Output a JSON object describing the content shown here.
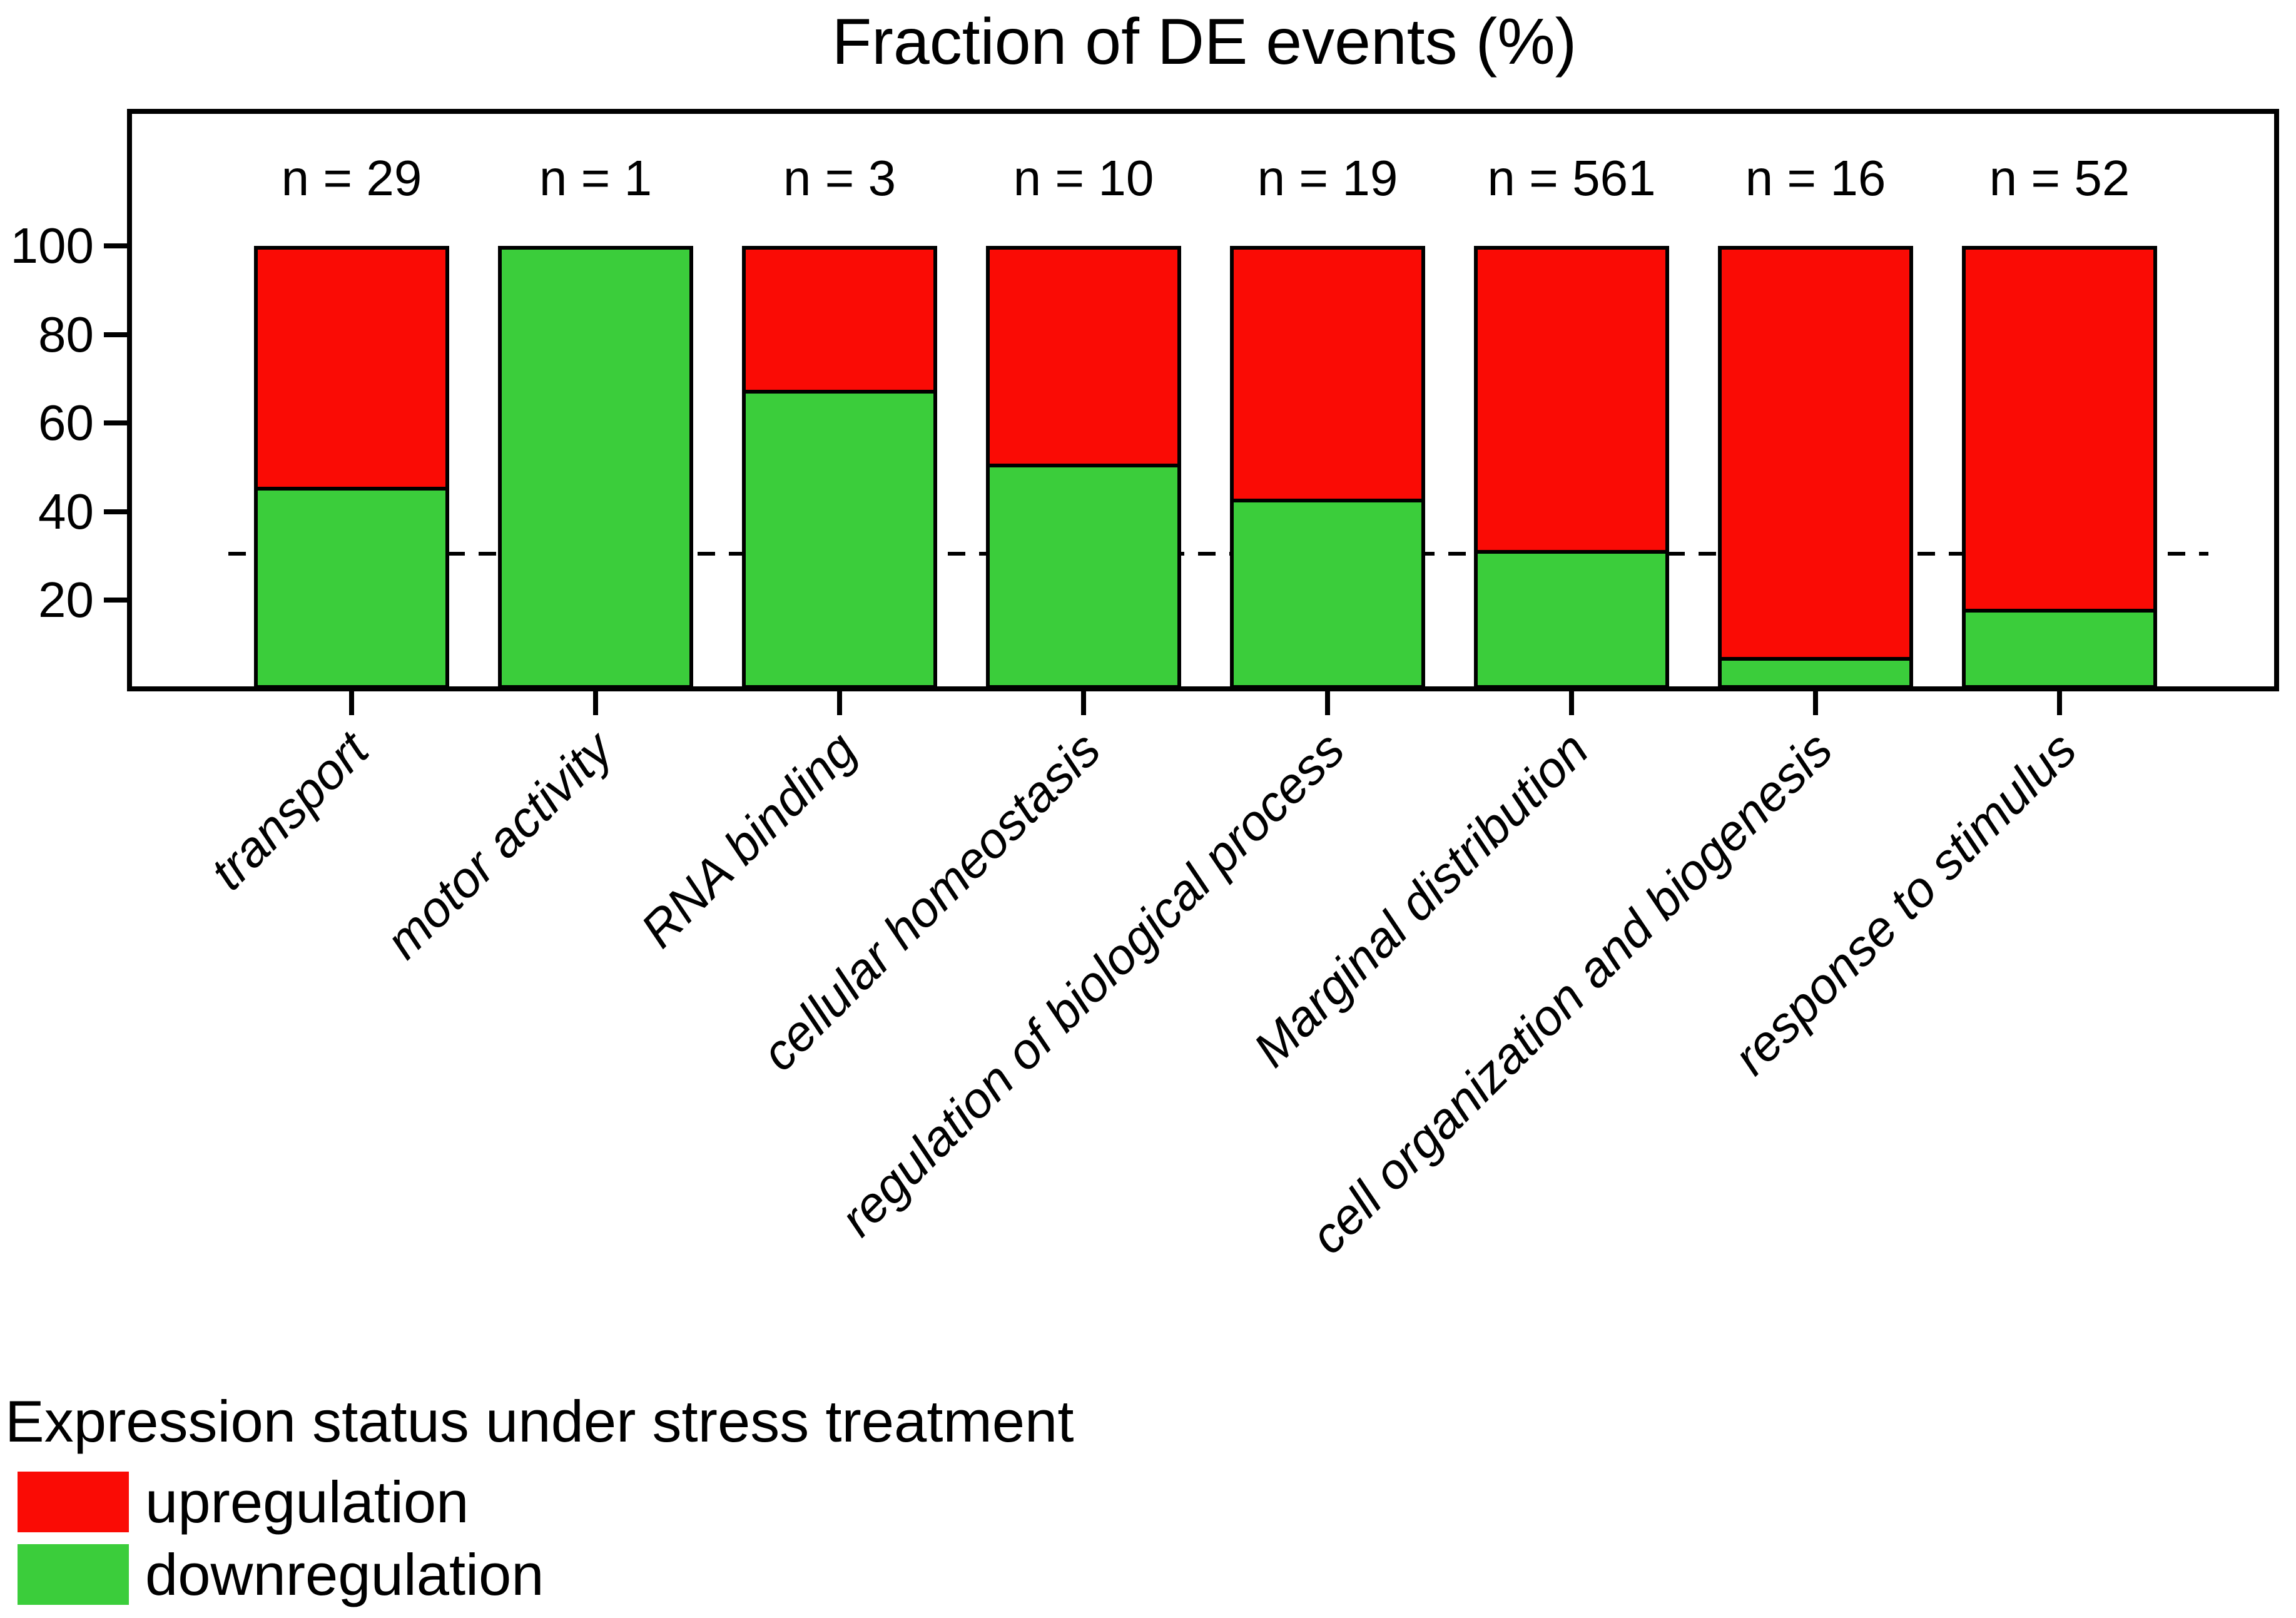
{
  "title": "Fraction of DE events (%)",
  "chart_data": {
    "type": "bar",
    "stacked": true,
    "title": "Fraction of DE events (%)",
    "categories": [
      "transport",
      "motor activity",
      "RNA binding",
      "cellular homeostasis",
      "regulation of biological process",
      "Marginal distribution",
      "cell organization and biogenesis",
      "response to stimulus"
    ],
    "count_labels": [
      "n = 29",
      "n = 1",
      "n = 3",
      "n = 10",
      "n = 19",
      "n = 561",
      "n = 16",
      "n = 52"
    ],
    "series": [
      {
        "name": "downregulation",
        "color": "#3bcd3b",
        "values": [
          44.8,
          100,
          66.7,
          50,
          42.1,
          30.5,
          6.3,
          17.3
        ]
      },
      {
        "name": "upregulation",
        "color": "#fa0b05",
        "values": [
          55.2,
          0,
          33.3,
          50,
          57.9,
          69.5,
          93.7,
          82.7
        ]
      }
    ],
    "y_ticks": [
      20,
      40,
      60,
      80,
      100
    ],
    "ylim": [
      0,
      131
    ],
    "reference_line_y": 30.5,
    "grid": false,
    "legend_position": "bottom-left"
  },
  "legend": {
    "title": "Expression status under stress treatment",
    "items": [
      {
        "label": "upregulation",
        "color": "#fa0b05"
      },
      {
        "label": "downregulation",
        "color": "#3bcd3b"
      }
    ]
  }
}
